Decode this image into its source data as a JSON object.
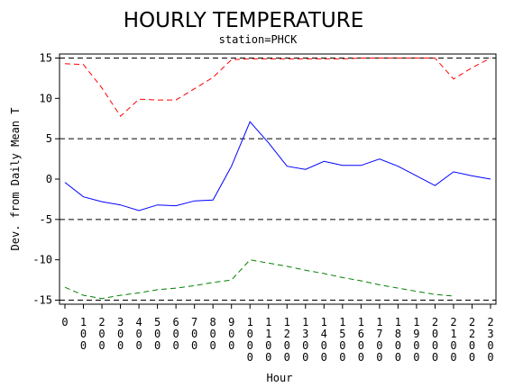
{
  "chart_data": {
    "type": "line",
    "title": "HOURLY TEMPERATURE",
    "subtitle": "station=PHCK",
    "xlabel": "Hour",
    "ylabel": "Dev. from Daily Mean T",
    "ylim": [
      -15.5,
      15.5
    ],
    "yticks": [
      {
        "value": 15,
        "label": "15"
      },
      {
        "value": 10,
        "label": "10"
      },
      {
        "value": 5,
        "label": "5"
      },
      {
        "value": 0,
        "label": "0"
      },
      {
        "value": -5,
        "label": "-5"
      },
      {
        "value": -10,
        "label": "-10"
      },
      {
        "value": -15,
        "label": "-15"
      }
    ],
    "x": [
      0,
      100,
      200,
      300,
      400,
      500,
      600,
      700,
      800,
      900,
      1000,
      1100,
      1200,
      1300,
      1400,
      1500,
      1600,
      1700,
      1800,
      1900,
      2000,
      2100,
      2200,
      2300
    ],
    "xtick_labels": [
      "0",
      "100",
      "200",
      "300",
      "400",
      "500",
      "600",
      "700",
      "800",
      "900",
      "1000",
      "1100",
      "1200",
      "1300",
      "1400",
      "1500",
      "1600",
      "1700",
      "1800",
      "1900",
      "2000",
      "2100",
      "2200",
      "2300"
    ],
    "reference_lines": [
      15,
      5,
      -5,
      -15
    ],
    "series": [
      {
        "color": "#ff0000",
        "style": "dashed",
        "values": [
          14.3,
          14.2,
          11.3,
          7.8,
          9.9,
          9.8,
          9.8,
          11.2,
          12.6,
          14.8,
          14.9,
          14.9,
          14.9,
          14.9,
          14.9,
          14.9,
          15.0,
          15.0,
          15.0,
          15.0,
          15.0,
          12.4,
          13.8,
          15.0
        ]
      },
      {
        "color": "#0000ff",
        "style": "solid",
        "values": [
          -0.4,
          -2.2,
          -2.8,
          -3.2,
          -3.9,
          -3.2,
          -3.3,
          -2.7,
          -2.6,
          1.6,
          7.1,
          4.5,
          1.6,
          1.2,
          2.2,
          1.7,
          1.7,
          2.5,
          1.6,
          0.4,
          -0.8,
          0.9,
          0.4,
          0.0
        ]
      },
      {
        "color": "#008000",
        "style": "dashed",
        "values": [
          -13.4,
          -14.4,
          -14.8,
          -14.4,
          -14.1,
          -13.7,
          -13.5,
          -13.2,
          -12.8,
          -12.5,
          -10.0,
          -10.4,
          -10.8,
          -11.3,
          -11.7,
          -12.2,
          -12.6,
          -13.1,
          -13.5,
          -13.9,
          -14.3,
          -14.5,
          null,
          null
        ]
      }
    ]
  }
}
